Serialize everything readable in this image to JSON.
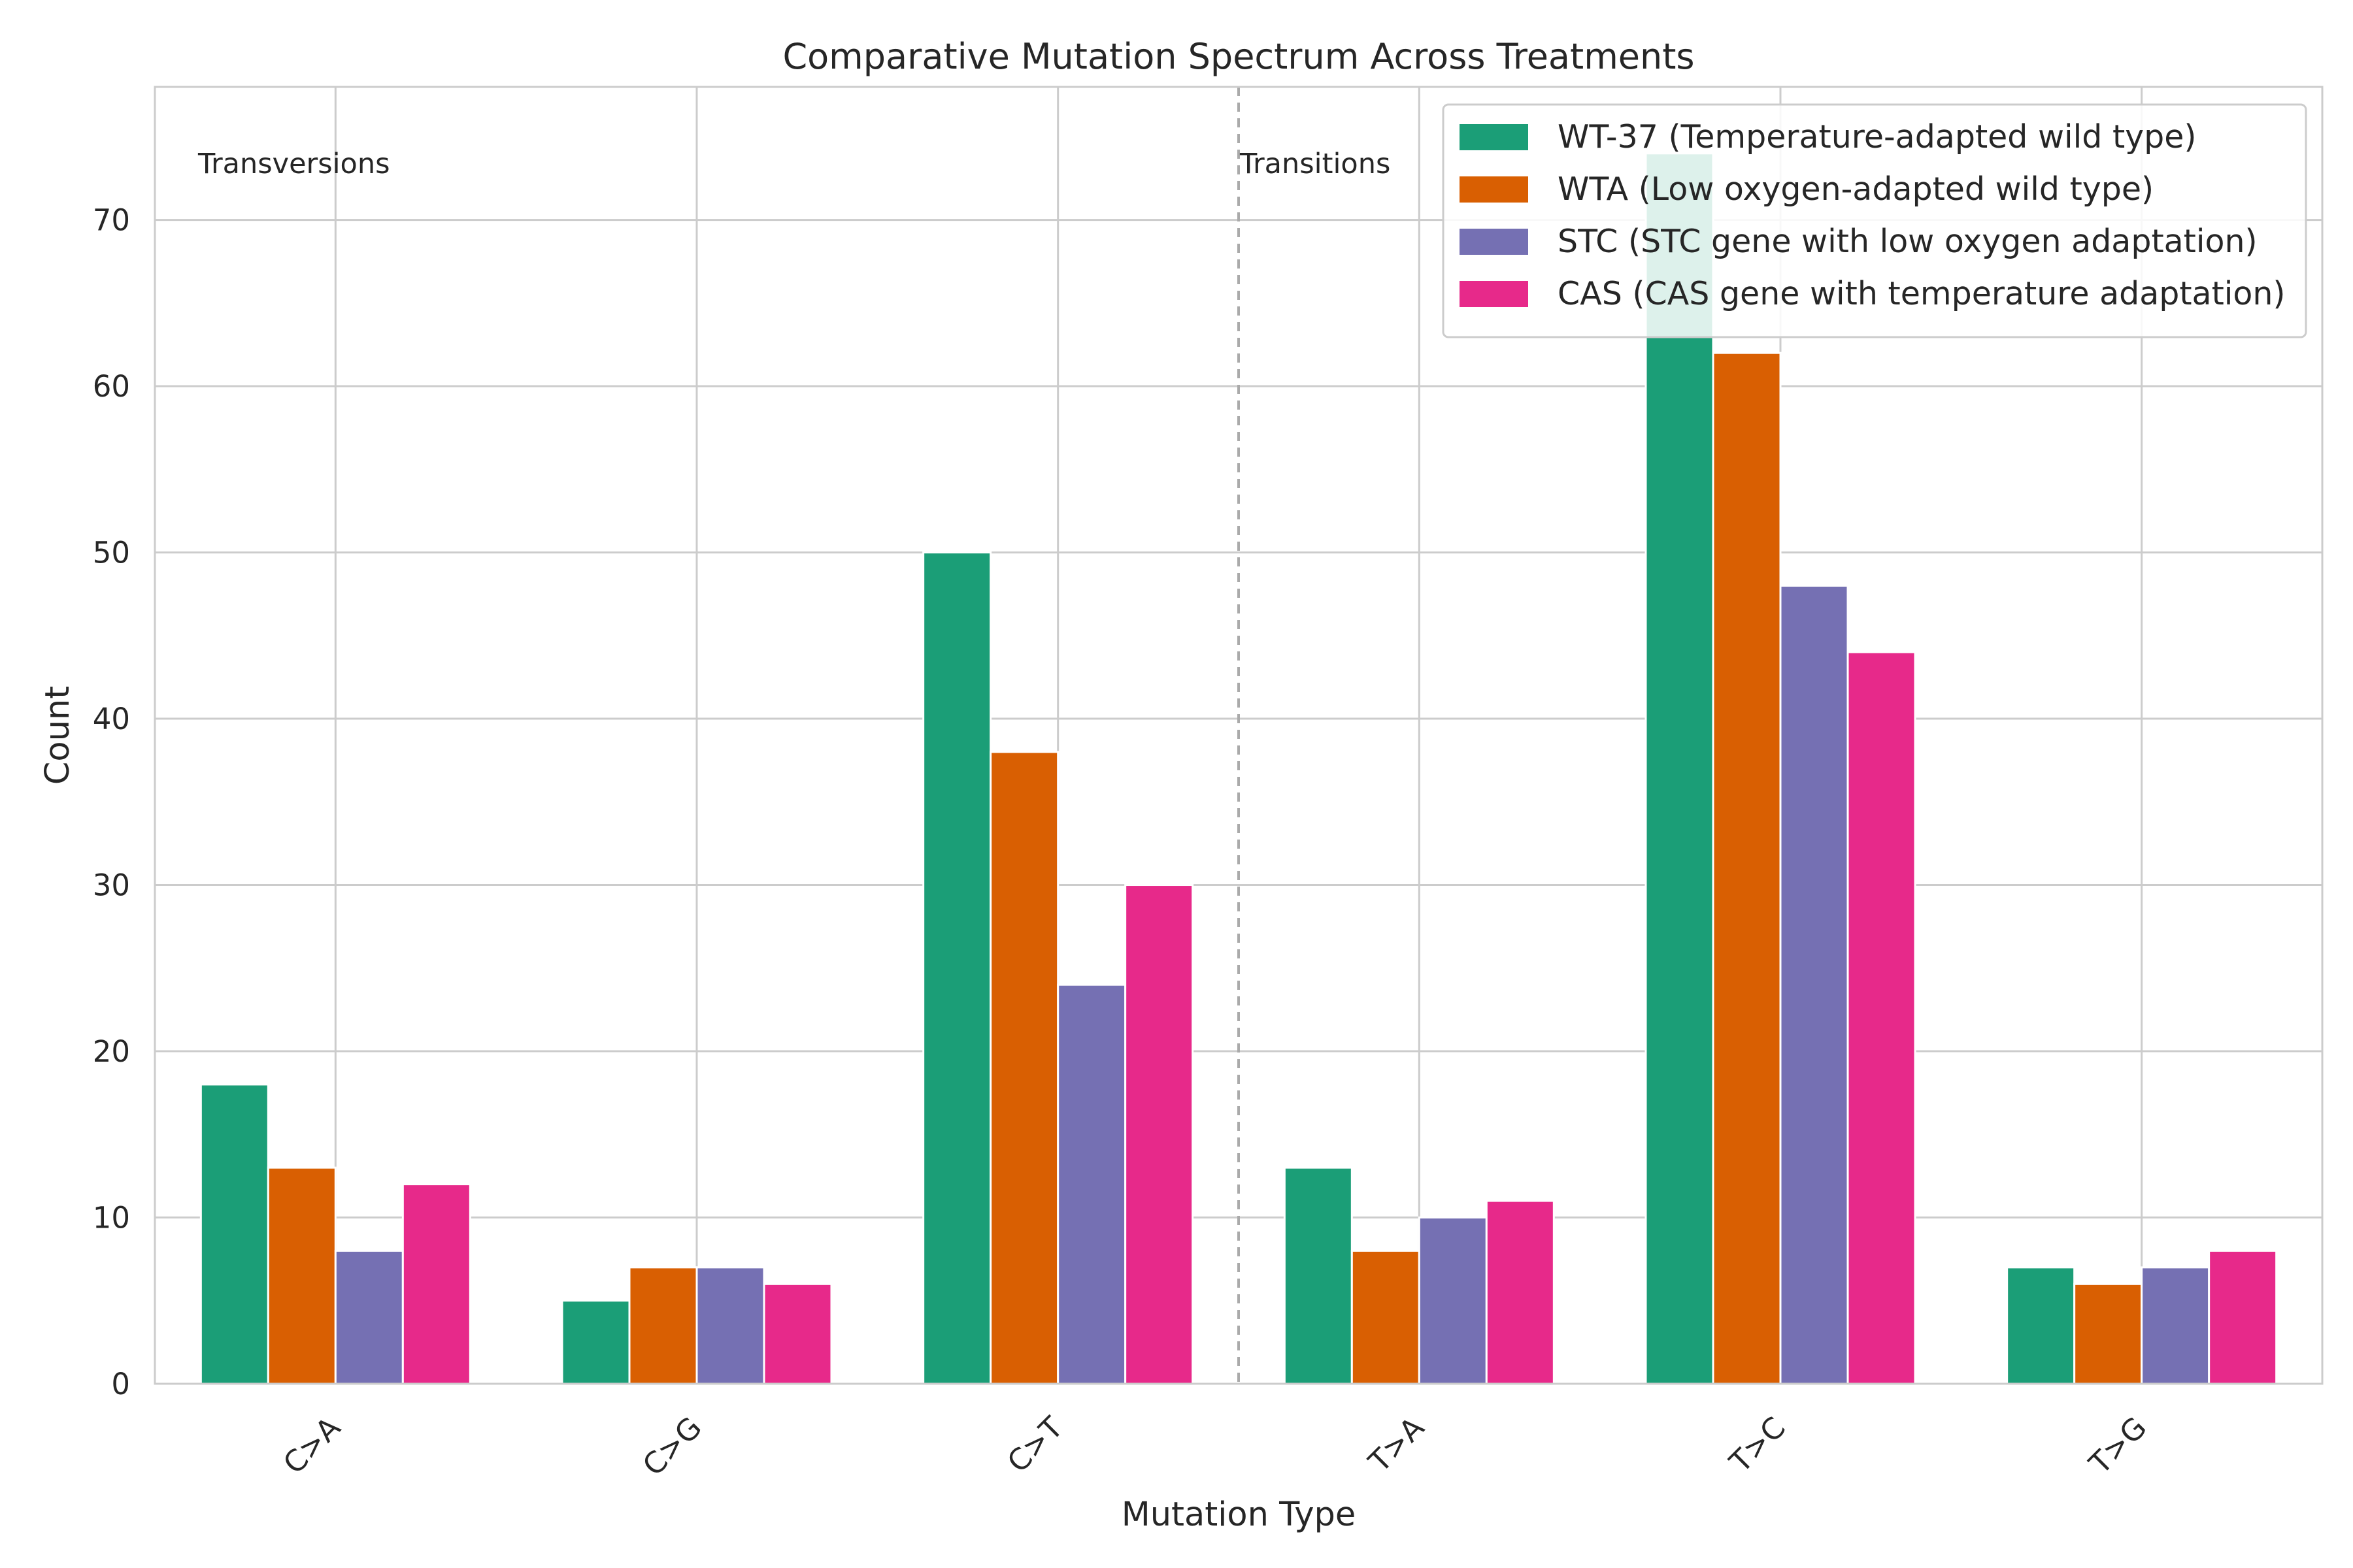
{
  "chart_data": {
    "type": "bar",
    "title": "Comparative Mutation Spectrum Across Treatments",
    "xlabel": "Mutation Type",
    "ylabel": "Count",
    "categories": [
      "C>A",
      "C>G",
      "C>T",
      "T>A",
      "T>C",
      "T>G"
    ],
    "ylim": [
      0,
      78
    ],
    "yticks": [
      0,
      10,
      20,
      30,
      40,
      50,
      60,
      70
    ],
    "grid": true,
    "legend_position": "top-right",
    "series": [
      {
        "name": "WT-37 (Temperature-adapted wild type)",
        "color": "#1b9e77",
        "values": [
          18,
          5,
          50,
          13,
          74,
          7
        ]
      },
      {
        "name": "WTA (Low oxygen-adapted wild type)",
        "color": "#d95f02",
        "values": [
          13,
          7,
          38,
          8,
          62,
          6
        ]
      },
      {
        "name": "STC (STC gene with low oxygen adaptation)",
        "color": "#7570b3",
        "values": [
          8,
          7,
          24,
          10,
          48,
          7
        ]
      },
      {
        "name": "CAS (CAS gene with temperature adaptation)",
        "color": "#e7298a",
        "values": [
          12,
          6,
          30,
          11,
          44,
          8
        ]
      }
    ],
    "annotations": [
      "Transversions",
      "Transitions"
    ]
  }
}
